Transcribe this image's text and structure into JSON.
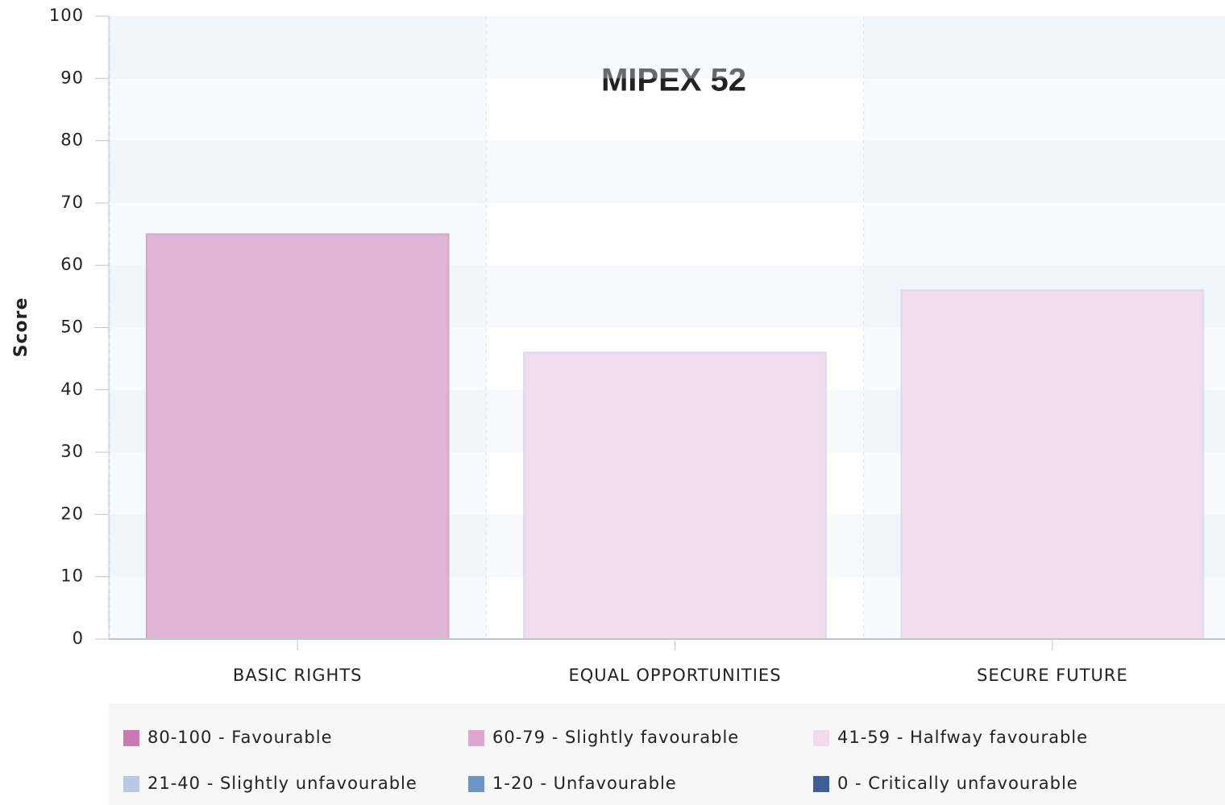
{
  "chart_data": {
    "type": "bar",
    "title": "MIPEX 52",
    "y_label": "Score",
    "categories": [
      "BASIC RIGHTS",
      "EQUAL OPPORTUNITIES",
      "SECURE FUTURE"
    ],
    "values": [
      65,
      46,
      56
    ],
    "colors": [
      "#e0b5d5",
      "#f1dbec",
      "#f1dbec"
    ],
    "ylim": [
      0,
      100
    ],
    "yticks": [
      0,
      10,
      20,
      30,
      40,
      50,
      60,
      70,
      80,
      90,
      100
    ],
    "legend": [
      {
        "name": "80-100 - Favourable",
        "color": "#c879b6"
      },
      {
        "name": "60-79 - Slightly favourable",
        "color": "#dfa6cf"
      },
      {
        "name": "41-59 - Halfway favourable",
        "color": "#f2d9ec"
      },
      {
        "name": "21-40 - Slightly unfavourable",
        "color": "#b8c9e4"
      },
      {
        "name": "1-20 - Unfavourable",
        "color": "#6f94c8"
      },
      {
        "name": "0 - Critically unfavourable",
        "color": "#3c5f98"
      }
    ]
  }
}
